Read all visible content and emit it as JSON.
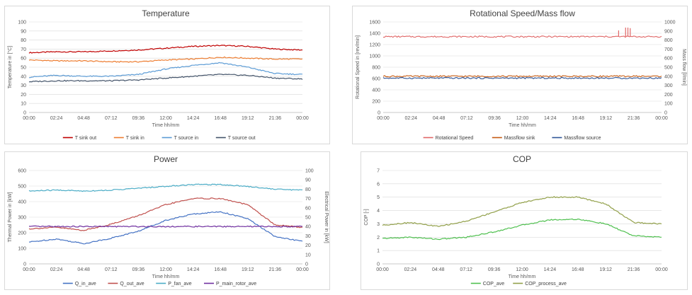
{
  "chart_data": [
    {
      "id": "temperature",
      "type": "line",
      "title": "Temperature",
      "xlabel": "Time hh/mm",
      "ylabel": "Temperature in [°C]",
      "x": [
        "00:00",
        "02:24",
        "04:48",
        "07:12",
        "09:36",
        "12:00",
        "14:24",
        "16:48",
        "19:12",
        "21:36",
        "00:00"
      ],
      "ylim": [
        0,
        100
      ],
      "yticks": [
        0,
        10,
        20,
        30,
        40,
        50,
        60,
        70,
        80,
        90,
        100
      ],
      "grid": true,
      "legend": "bottom",
      "series": [
        {
          "name": "T sink out",
          "color": "#c00000",
          "values": [
            66,
            67,
            67,
            68,
            69,
            71,
            73,
            74,
            73,
            70,
            69
          ]
        },
        {
          "name": "T sink in",
          "color": "#ed7d31",
          "values": [
            58,
            57,
            57,
            56,
            56,
            58,
            59,
            61,
            60,
            59,
            59
          ]
        },
        {
          "name": "T source in",
          "color": "#5b9bd5",
          "values": [
            39,
            41,
            40,
            40,
            42,
            48,
            52,
            55,
            50,
            43,
            42
          ]
        },
        {
          "name": "T source out",
          "color": "#44546a",
          "values": [
            34,
            35,
            35,
            35,
            36,
            38,
            40,
            42,
            41,
            38,
            37
          ]
        }
      ]
    },
    {
      "id": "rotational",
      "type": "line",
      "title": "Rotational Speed/Mass flow",
      "xlabel": "Time hh/mm",
      "ylabel": "Rotational Speed in [rev/min]",
      "y2label": "Mass flow [l/min]",
      "x": [
        "00:00",
        "02:24",
        "04:48",
        "07:12",
        "09:36",
        "12:00",
        "14:24",
        "16:48",
        "19:12",
        "21:36",
        "00:00"
      ],
      "ylim": [
        0,
        1600
      ],
      "yticks": [
        0,
        200,
        400,
        600,
        800,
        1000,
        1200,
        1400,
        1600
      ],
      "y2lim": [
        0,
        1000
      ],
      "y2ticks": [
        0,
        100,
        200,
        300,
        400,
        500,
        600,
        700,
        800,
        900,
        1000
      ],
      "grid": true,
      "legend": "bottom",
      "series": [
        {
          "name": "Rotational Speed",
          "color": "#e06666",
          "axis": "left",
          "values": [
            1340,
            1340,
            1340,
            1340,
            1340,
            1340,
            1340,
            1340,
            1340,
            1340,
            1340
          ]
        },
        {
          "name": "Massflow sink",
          "color": "#c55a11",
          "axis": "right",
          "values": [
            400,
            400,
            400,
            400,
            400,
            400,
            400,
            400,
            400,
            400,
            400
          ]
        },
        {
          "name": "Massflow source",
          "color": "#2f5597",
          "axis": "right",
          "values": [
            380,
            380,
            380,
            380,
            380,
            380,
            380,
            380,
            380,
            380,
            380
          ]
        }
      ],
      "spikes": [
        {
          "x": 20.3,
          "value": 1450
        },
        {
          "x": 20.9,
          "value": 1500
        },
        {
          "x": 21.1,
          "value": 1500
        },
        {
          "x": 21.3,
          "value": 1490
        }
      ]
    },
    {
      "id": "power",
      "type": "line",
      "title": "Power",
      "xlabel": "Time hh/mm",
      "ylabel": "Thermal Power in [kW]",
      "y2label": "Electrical Power in [kW]",
      "x": [
        "00:00",
        "02:24",
        "04:48",
        "07:12",
        "09:36",
        "12:00",
        "14:24",
        "16:48",
        "19:12",
        "21:36",
        "00:00"
      ],
      "ylim": [
        0,
        600
      ],
      "yticks": [
        0,
        100,
        200,
        300,
        400,
        500,
        600
      ],
      "y2lim": [
        0,
        100
      ],
      "y2ticks": [
        0,
        10,
        20,
        30,
        40,
        50,
        60,
        70,
        80,
        90,
        100
      ],
      "grid": true,
      "legend": "bottom",
      "series": [
        {
          "name": "Q_in_ave",
          "color": "#4472c4",
          "axis": "left",
          "values": [
            140,
            160,
            130,
            165,
            210,
            280,
            320,
            335,
            290,
            175,
            145
          ]
        },
        {
          "name": "Q_out_ave",
          "color": "#c0504d",
          "axis": "left",
          "values": [
            225,
            235,
            215,
            255,
            310,
            380,
            420,
            420,
            380,
            250,
            235
          ]
        },
        {
          "name": "P_fan_ave",
          "color": "#4bacc6",
          "axis": "right",
          "values": [
            78,
            79,
            78,
            79,
            81,
            83,
            85,
            85,
            83,
            80,
            79
          ]
        },
        {
          "name": "P_main_rotor_ave",
          "color": "#7030a0",
          "axis": "right",
          "values": [
            40,
            40,
            40,
            40,
            40,
            40,
            40,
            40,
            40,
            40,
            40
          ]
        }
      ]
    },
    {
      "id": "cop",
      "type": "line",
      "title": "COP",
      "xlabel": "Time hh/mm",
      "ylabel": "COP [-]",
      "x": [
        "00:00",
        "02:24",
        "04:48",
        "07:12",
        "09:36",
        "12:00",
        "14:24",
        "16:48",
        "19:12",
        "21:36",
        "00:00"
      ],
      "ylim": [
        0,
        7
      ],
      "yticks": [
        0,
        1,
        2,
        3,
        4,
        5,
        6,
        7
      ],
      "grid": true,
      "legend": "bottom",
      "series": [
        {
          "name": "COP_ave",
          "color": "#4fc04f",
          "values": [
            1.9,
            2.0,
            1.85,
            2.0,
            2.4,
            2.9,
            3.3,
            3.35,
            3.0,
            2.1,
            2.0
          ]
        },
        {
          "name": "COP_process_ave",
          "color": "#92a04a",
          "values": [
            2.9,
            3.1,
            2.8,
            3.2,
            3.9,
            4.6,
            5.0,
            5.0,
            4.5,
            3.1,
            3.0
          ]
        }
      ]
    }
  ]
}
